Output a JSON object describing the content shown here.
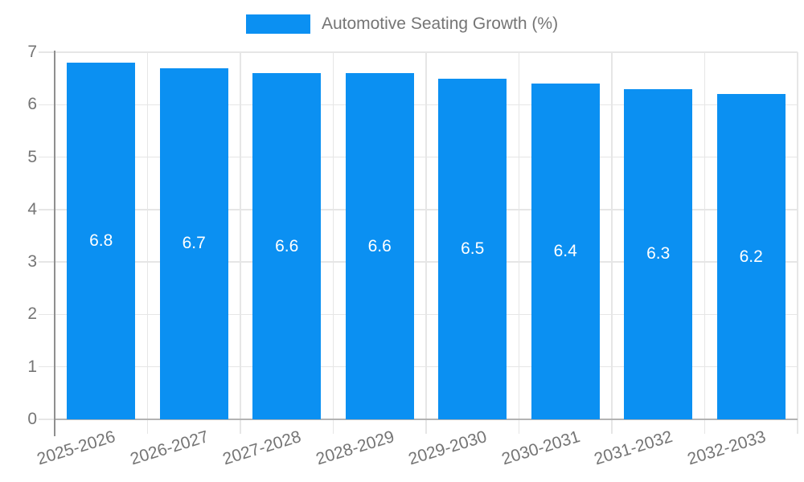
{
  "legend": {
    "label": "Automotive Seating Growth (%)"
  },
  "colors": {
    "bar": "#0b90f2",
    "axis_text": "#757575",
    "gridline": "#e6e6e6",
    "y_axis_line": "#8f8f8f",
    "x_axis_line": "#b3b3b3",
    "value_label": "#ffffff",
    "background": "#ffffff"
  },
  "chart_data": {
    "type": "bar",
    "title": "Automotive Seating Growth (%)",
    "categories": [
      "2025-2026",
      "2026-2027",
      "2027-2028",
      "2028-2029",
      "2029-2030",
      "2030-2031",
      "2031-2032",
      "2032-2033"
    ],
    "values": [
      6.8,
      6.7,
      6.6,
      6.6,
      6.5,
      6.4,
      6.3,
      6.2
    ],
    "bar_labels": [
      "6.8",
      "6.7",
      "6.6",
      "6.6",
      "6.5",
      "6.4",
      "6.3",
      "6.2"
    ],
    "xlabel": "",
    "ylabel": "",
    "ylim": [
      0,
      7
    ],
    "yticks": [
      0,
      1,
      2,
      3,
      4,
      5,
      6,
      7
    ],
    "grid": true,
    "legend_position": "top",
    "x_label_rotation_deg": -17
  }
}
